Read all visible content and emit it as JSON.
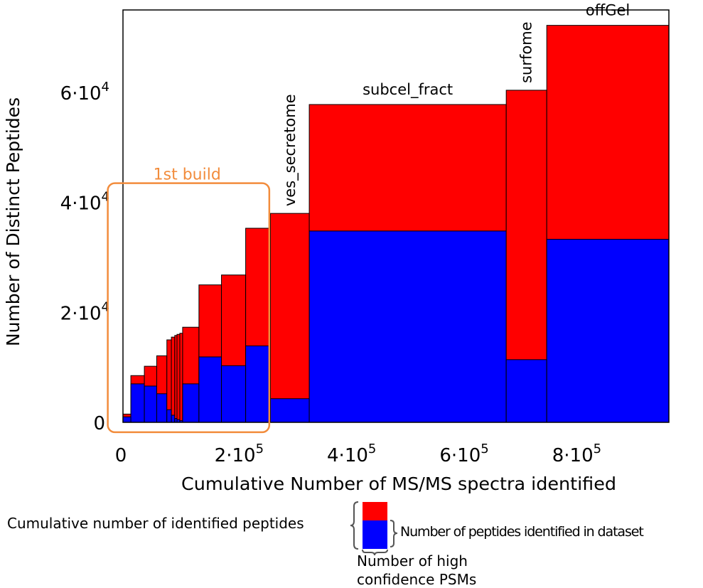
{
  "chart_data": {
    "type": "bar",
    "subtype": "variable-width stacked bars (Marimekko)",
    "xlabel": "Cumulative Number of MS/MS spectra identified",
    "ylabel": "Number of Distinct Peptides",
    "xlim": [
      0,
      970000
    ],
    "ylim": [
      0,
      75000
    ],
    "x_ticks": [
      0,
      200000,
      400000,
      600000,
      800000
    ],
    "x_tick_labels": [
      {
        "base": "0",
        "exp": ""
      },
      {
        "base": "2·10",
        "exp": "5"
      },
      {
        "base": "4·10",
        "exp": "5"
      },
      {
        "base": "6·10",
        "exp": "5"
      },
      {
        "base": "8·10",
        "exp": "5"
      }
    ],
    "y_ticks": [
      0,
      20000,
      40000,
      60000
    ],
    "y_tick_labels": [
      {
        "base": "0",
        "exp": ""
      },
      {
        "base": "2·10",
        "exp": "4"
      },
      {
        "base": "4·10",
        "exp": "4"
      },
      {
        "base": "6·10",
        "exp": "4"
      }
    ],
    "series_colors": {
      "cumulative": "#ff0000",
      "dataset": "#0000ff"
    },
    "bars": [
      {
        "x0": 0,
        "x1": 14000,
        "cumulative": 1500,
        "dataset": 1000
      },
      {
        "x0": 14000,
        "x1": 38000,
        "cumulative": 8500,
        "dataset": 7000
      },
      {
        "x0": 38000,
        "x1": 60000,
        "cumulative": 10200,
        "dataset": 6600
      },
      {
        "x0": 60000,
        "x1": 78000,
        "cumulative": 12100,
        "dataset": 5200
      },
      {
        "x0": 78000,
        "x1": 86000,
        "cumulative": 15000,
        "dataset": 2300
      },
      {
        "x0": 86000,
        "x1": 92000,
        "cumulative": 15500,
        "dataset": 1300
      },
      {
        "x0": 92000,
        "x1": 96000,
        "cumulative": 15800,
        "dataset": 700
      },
      {
        "x0": 96000,
        "x1": 101000,
        "cumulative": 16000,
        "dataset": 500
      },
      {
        "x0": 101000,
        "x1": 106000,
        "cumulative": 16200,
        "dataset": 300
      },
      {
        "x0": 106000,
        "x1": 135000,
        "cumulative": 17300,
        "dataset": 7000
      },
      {
        "x0": 135000,
        "x1": 175000,
        "cumulative": 25000,
        "dataset": 11900
      },
      {
        "x0": 175000,
        "x1": 218000,
        "cumulative": 26800,
        "dataset": 10300
      },
      {
        "x0": 218000,
        "x1": 262000,
        "cumulative": 35300,
        "dataset": 13900
      },
      {
        "x0": 262000,
        "x1": 331000,
        "cumulative": 38000,
        "dataset": 4300
      },
      {
        "x0": 331000,
        "x1": 681000,
        "cumulative": 57800,
        "dataset": 34800
      },
      {
        "x0": 681000,
        "x1": 753000,
        "cumulative": 60400,
        "dataset": 11400
      },
      {
        "x0": 753000,
        "x1": 970000,
        "cumulative": 72200,
        "dataset": 33300
      }
    ],
    "dataset_labels": [
      {
        "text": "ves_secretome",
        "bar": 13,
        "orientation": "vertical"
      },
      {
        "text": "subcel_fract",
        "bar": 14,
        "orientation": "horizontal"
      },
      {
        "text": "surfome",
        "bar": 15,
        "orientation": "vertical"
      },
      {
        "text": "offGel",
        "bar": 16,
        "orientation": "horizontal"
      }
    ],
    "annotation": {
      "text": "1st build",
      "color": "#f28c3c",
      "x_range": [
        -27000,
        260000
      ],
      "y_range": [
        -1800,
        43500
      ]
    }
  },
  "legend": {
    "cumulative_label": "Cumulative number of identified peptides",
    "dataset_label": "Number of peptides identified in dataset",
    "psm_label_line1": "Number of high",
    "psm_label_line2": "confidence PSMs",
    "cumulative_color": "#ff0000",
    "dataset_color": "#0000ff"
  }
}
